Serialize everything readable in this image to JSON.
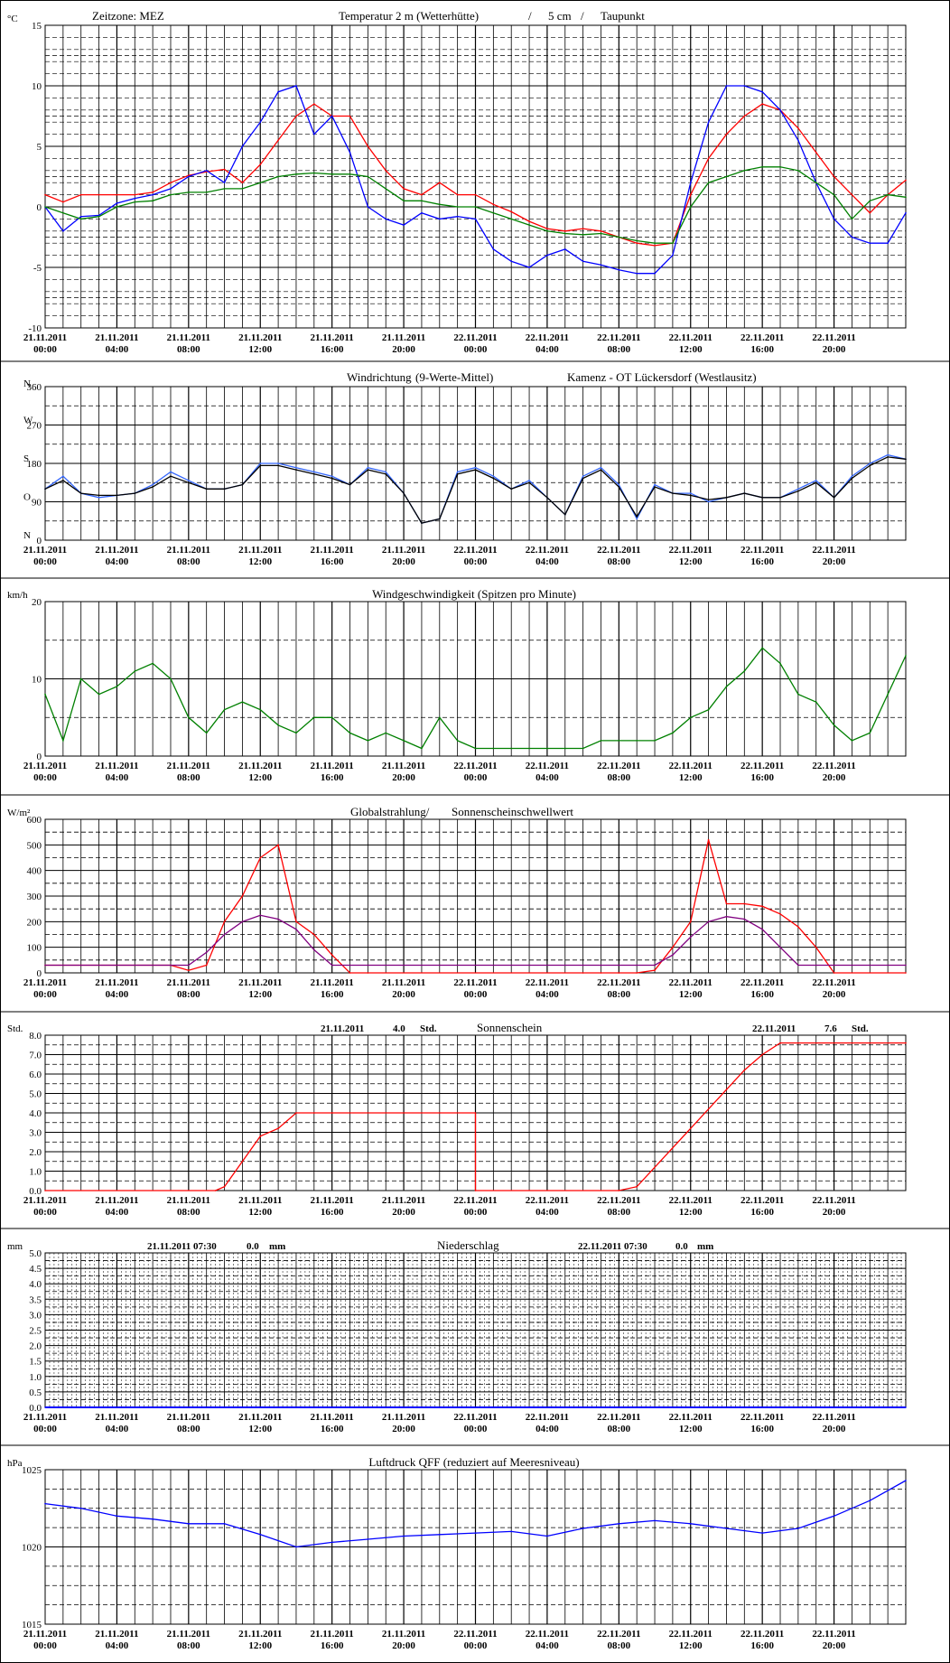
{
  "x_labels": [
    [
      "21.11.2011",
      "00:00"
    ],
    [
      "21.11.2011",
      "04:00"
    ],
    [
      "21.11.2011",
      "08:00"
    ],
    [
      "21.11.2011",
      "12:00"
    ],
    [
      "21.11.2011",
      "16:00"
    ],
    [
      "21.11.2011",
      "20:00"
    ],
    [
      "22.11.2011",
      "00:00"
    ],
    [
      "22.11.2011",
      "04:00"
    ],
    [
      "22.11.2011",
      "08:00"
    ],
    [
      "22.11.2011",
      "12:00"
    ],
    [
      "22.11.2011",
      "16:00"
    ],
    [
      "22.11.2011",
      "20:00"
    ]
  ],
  "colors": {
    "red": "#ff0000",
    "blue": "#0000ff",
    "green": "#008000",
    "purple": "#800080",
    "lightblue": "#3366ff",
    "black": "#000000",
    "wind_green": "#008000"
  },
  "chart_data": [
    {
      "id": "temperature",
      "type": "line",
      "unit": "°C",
      "title_parts": [
        {
          "text": "Zeitzone: MEZ",
          "color": "#000000"
        },
        {
          "text": "Temperatur 2 m (Wetterhütte)",
          "color": "#ff0000"
        },
        {
          "text": " / ",
          "color": "#000000"
        },
        {
          "text": "5 cm",
          "color": "#0000ff"
        },
        {
          "text": " / ",
          "color": "#000000"
        },
        {
          "text": "Taupunkt",
          "color": "#008000"
        }
      ],
      "ylim": [
        -10,
        15
      ],
      "yticks": [
        "15",
        "10",
        "5",
        "0",
        "-5",
        "-10"
      ],
      "series": [
        {
          "name": "Temperatur 2 m (Wetterhütte)",
          "color": "#ff0000",
          "x": [
            0,
            1,
            2,
            3,
            4,
            5,
            6,
            7,
            8,
            9,
            10,
            11,
            12,
            13,
            14,
            15,
            16,
            17,
            18,
            19,
            20,
            21,
            22,
            23,
            24,
            25,
            26,
            27,
            28,
            29,
            30,
            31,
            32,
            33,
            34,
            35,
            36,
            37,
            38,
            39,
            40,
            41,
            42,
            43,
            44,
            45,
            46,
            47,
            48
          ],
          "values": [
            1.0,
            0.4,
            1.0,
            1.0,
            1.0,
            1.0,
            1.2,
            2.0,
            2.6,
            2.9,
            3.1,
            2.0,
            3.5,
            5.5,
            7.5,
            8.5,
            7.5,
            7.5,
            5.0,
            3.0,
            1.5,
            1.0,
            2.0,
            1.0,
            1.0,
            0.2,
            -0.4,
            -1.2,
            -1.8,
            -2.0,
            -1.8,
            -2.0,
            -2.5,
            -3.0,
            -3.2,
            -3.0,
            1.0,
            4.0,
            6.0,
            7.5,
            8.5,
            8.0,
            6.5,
            4.5,
            2.5,
            1.0,
            -0.5,
            1.0,
            2.2
          ]
        },
        {
          "name": "5 cm",
          "color": "#0000ff",
          "x": [
            0,
            1,
            2,
            3,
            4,
            5,
            6,
            7,
            8,
            9,
            10,
            11,
            12,
            13,
            14,
            15,
            16,
            17,
            18,
            19,
            20,
            21,
            22,
            23,
            24,
            25,
            26,
            27,
            28,
            29,
            30,
            31,
            32,
            33,
            34,
            35,
            36,
            37,
            38,
            39,
            40,
            41,
            42,
            43,
            44,
            45,
            46,
            47,
            48
          ],
          "values": [
            0.0,
            -2.0,
            -0.8,
            -0.7,
            0.3,
            0.7,
            1.0,
            1.5,
            2.5,
            3.0,
            2.0,
            5.0,
            7.0,
            9.5,
            10.0,
            6.0,
            7.5,
            4.5,
            0.0,
            -1.0,
            -1.5,
            -0.5,
            -1.0,
            -0.8,
            -1.0,
            -3.5,
            -4.5,
            -5.0,
            -4.0,
            -3.5,
            -4.5,
            -4.8,
            -5.2,
            -5.5,
            -5.5,
            -4.0,
            2.0,
            7.0,
            10.0,
            10.0,
            9.5,
            8.0,
            5.5,
            2.0,
            -1.0,
            -2.5,
            -3.0,
            -3.0,
            -0.5
          ]
        },
        {
          "name": "Taupunkt",
          "color": "#008000",
          "x": [
            0,
            1,
            2,
            3,
            4,
            5,
            6,
            7,
            8,
            9,
            10,
            11,
            12,
            13,
            14,
            15,
            16,
            17,
            18,
            19,
            20,
            21,
            22,
            23,
            24,
            25,
            26,
            27,
            28,
            29,
            30,
            31,
            32,
            33,
            34,
            35,
            36,
            37,
            38,
            39,
            40,
            41,
            42,
            43,
            44,
            45,
            46,
            47,
            48
          ],
          "values": [
            0.0,
            -0.5,
            -1.0,
            -0.8,
            0.0,
            0.4,
            0.5,
            1.0,
            1.2,
            1.2,
            1.5,
            1.5,
            2.0,
            2.5,
            2.7,
            2.8,
            2.7,
            2.7,
            2.5,
            1.5,
            0.5,
            0.5,
            0.2,
            0.0,
            0.0,
            -0.5,
            -1.0,
            -1.5,
            -2.0,
            -2.2,
            -2.3,
            -2.2,
            -2.5,
            -2.8,
            -3.0,
            -3.0,
            0.0,
            2.0,
            2.5,
            3.0,
            3.3,
            3.3,
            3.0,
            2.0,
            1.0,
            -1.0,
            0.5,
            1.0,
            0.8
          ]
        }
      ]
    },
    {
      "id": "wind_direction",
      "type": "line",
      "title_parts": [
        {
          "text": "Windrichtung",
          "color": "#3366ff"
        },
        {
          "text": " (9-Werte-Mittel)",
          "color": "#000000"
        },
        {
          "text": "Kamenz - OT Lückersdorf (Westlausitz)",
          "color": "#000000"
        }
      ],
      "ylim": [
        0,
        360
      ],
      "yticks": [
        "360",
        "270",
        "180",
        "90",
        "0"
      ],
      "compass": [
        "N",
        "W",
        "S",
        "O",
        "N"
      ],
      "series": [
        {
          "name": "Windrichtung",
          "color": "#3366ff",
          "x": [
            0,
            1,
            2,
            3,
            4,
            5,
            6,
            7,
            8,
            9,
            10,
            11,
            12,
            13,
            14,
            15,
            16,
            17,
            18,
            19,
            20,
            21,
            22,
            23,
            24,
            25,
            26,
            27,
            28,
            29,
            30,
            31,
            32,
            33,
            34,
            35,
            36,
            37,
            38,
            39,
            40,
            41,
            42,
            43,
            44,
            45,
            46,
            47,
            48
          ],
          "values": [
            120,
            150,
            110,
            100,
            105,
            110,
            130,
            160,
            140,
            120,
            120,
            130,
            180,
            180,
            170,
            160,
            150,
            130,
            170,
            160,
            110,
            40,
            50,
            160,
            170,
            150,
            120,
            140,
            100,
            60,
            150,
            170,
            130,
            50,
            130,
            110,
            110,
            90,
            100,
            110,
            100,
            100,
            120,
            140,
            100,
            150,
            180,
            200,
            190
          ]
        },
        {
          "name": "9-Werte-Mittel",
          "color": "#000000",
          "x": [
            0,
            1,
            2,
            3,
            4,
            5,
            6,
            7,
            8,
            9,
            10,
            11,
            12,
            13,
            14,
            15,
            16,
            17,
            18,
            19,
            20,
            21,
            22,
            23,
            24,
            25,
            26,
            27,
            28,
            29,
            30,
            31,
            32,
            33,
            34,
            35,
            36,
            37,
            38,
            39,
            40,
            41,
            42,
            43,
            44,
            45,
            46,
            47,
            48
          ],
          "values": [
            120,
            140,
            110,
            105,
            105,
            110,
            125,
            150,
            135,
            120,
            120,
            130,
            175,
            175,
            165,
            155,
            145,
            130,
            165,
            155,
            110,
            40,
            50,
            155,
            165,
            145,
            120,
            135,
            100,
            60,
            145,
            165,
            125,
            55,
            125,
            110,
            105,
            95,
            100,
            110,
            100,
            100,
            115,
            135,
            100,
            145,
            175,
            195,
            190
          ]
        }
      ]
    },
    {
      "id": "wind_speed",
      "type": "line",
      "unit": "km/h",
      "title_parts": [
        {
          "text": "Windgeschwindigkeit (Spitzen pro Minute)",
          "color": "#000000"
        }
      ],
      "ylim": [
        0,
        20
      ],
      "yticks": [
        "20",
        "10",
        "0"
      ],
      "series": [
        {
          "name": "Windgeschwindigkeit",
          "color": "#008000",
          "x": [
            0,
            1,
            2,
            3,
            4,
            5,
            6,
            7,
            8,
            9,
            10,
            11,
            12,
            13,
            14,
            15,
            16,
            17,
            18,
            19,
            20,
            21,
            22,
            23,
            24,
            25,
            26,
            27,
            28,
            29,
            30,
            31,
            32,
            33,
            34,
            35,
            36,
            37,
            38,
            39,
            40,
            41,
            42,
            43,
            44,
            45,
            46,
            47,
            48
          ],
          "values": [
            8,
            2,
            10,
            8,
            9,
            11,
            12,
            10,
            5,
            3,
            6,
            7,
            6,
            4,
            3,
            5,
            5,
            3,
            2,
            3,
            2,
            1,
            5,
            2,
            1,
            1,
            1,
            1,
            1,
            1,
            1,
            2,
            2,
            2,
            2,
            3,
            5,
            6,
            9,
            11,
            14,
            12,
            8,
            7,
            4,
            2,
            3,
            8,
            13
          ]
        }
      ]
    },
    {
      "id": "global_radiation",
      "type": "line",
      "unit": "W/m²",
      "title_parts": [
        {
          "text": "Globalstrahlung/ ",
          "color": "#000000"
        },
        {
          "text": "Sonnenscheinschwellwert",
          "color": "#800080"
        }
      ],
      "ylim": [
        0,
        600
      ],
      "yticks": [
        "600",
        "500",
        "400",
        "300",
        "200",
        "100",
        "0"
      ],
      "series": [
        {
          "name": "Globalstrahlung",
          "color": "#ff0000",
          "x": [
            0,
            7,
            8,
            9,
            10,
            11,
            12,
            13,
            14,
            15,
            16,
            17,
            18,
            30,
            31,
            32,
            33,
            34,
            35,
            36,
            37,
            38,
            39,
            40,
            41,
            42,
            43,
            44,
            48
          ],
          "values": [
            30,
            30,
            10,
            30,
            200,
            300,
            450,
            500,
            200,
            150,
            70,
            0,
            0,
            0,
            0,
            0,
            0,
            10,
            100,
            200,
            520,
            270,
            270,
            260,
            230,
            180,
            100,
            0,
            0
          ]
        },
        {
          "name": "Sonnenscheinschwellwert",
          "color": "#800080",
          "x": [
            0,
            7,
            8,
            9,
            10,
            11,
            12,
            13,
            14,
            15,
            16,
            17,
            18,
            30,
            31,
            32,
            33,
            34,
            35,
            36,
            37,
            38,
            39,
            40,
            41,
            42,
            43,
            44,
            48
          ],
          "values": [
            30,
            30,
            30,
            80,
            150,
            200,
            225,
            210,
            170,
            90,
            30,
            30,
            30,
            30,
            30,
            30,
            30,
            30,
            70,
            140,
            200,
            220,
            210,
            170,
            100,
            30,
            30,
            30,
            30
          ]
        }
      ]
    },
    {
      "id": "sunshine",
      "type": "line",
      "unit": "Std.",
      "title_parts": [
        {
          "text": "21.11.2011",
          "color": "#000000"
        },
        {
          "text": "4.0",
          "color": "#000000"
        },
        {
          "text": "Std.",
          "color": "#000000"
        },
        {
          "text": "Sonnenschein",
          "color": "#000000"
        },
        {
          "text": "22.11.2011",
          "color": "#000000"
        },
        {
          "text": "7.6",
          "color": "#000000"
        },
        {
          "text": "Std.",
          "color": "#000000"
        }
      ],
      "ylim": [
        0,
        8
      ],
      "yticks": [
        "8.0",
        "7.0",
        "6.0",
        "5.0",
        "4.0",
        "3.0",
        "2.0",
        "1.0",
        "0.0"
      ],
      "series": [
        {
          "name": "Sonnenschein",
          "color": "#ff0000",
          "x": [
            0,
            9.5,
            10,
            11,
            12,
            13,
            14,
            15,
            16,
            24,
            24,
            32,
            33,
            38,
            39,
            40,
            41,
            42,
            48
          ],
          "values": [
            0,
            0,
            0.2,
            1.5,
            2.8,
            3.2,
            4.0,
            4.0,
            4.0,
            4.0,
            0,
            0,
            0.2,
            5.2,
            6.2,
            7.0,
            7.6,
            7.6,
            7.6
          ]
        }
      ]
    },
    {
      "id": "precipitation",
      "type": "line",
      "unit": "mm",
      "title_parts": [
        {
          "text": "21.11.2011 07:30",
          "color": "#000000"
        },
        {
          "text": "0.0",
          "color": "#000000"
        },
        {
          "text": "mm",
          "color": "#000000"
        },
        {
          "text": "Niederschlag",
          "color": "#000000"
        },
        {
          "text": "22.11.2011 07:30",
          "color": "#000000"
        },
        {
          "text": "0.0",
          "color": "#000000"
        },
        {
          "text": "mm",
          "color": "#000000"
        }
      ],
      "ylim": [
        0,
        5
      ],
      "yticks": [
        "5.0",
        "4.5",
        "4.0",
        "3.5",
        "3.0",
        "2.5",
        "2.0",
        "1.5",
        "1.0",
        "0.5",
        "0.0"
      ],
      "series": [
        {
          "name": "Niederschlag",
          "color": "#0000ff",
          "x": [
            0,
            48
          ],
          "values": [
            0,
            0
          ]
        }
      ]
    },
    {
      "id": "pressure",
      "type": "line",
      "unit": "hPa",
      "title_parts": [
        {
          "text": "Luftdruck QFF (reduziert auf Meeresniveau)",
          "color": "#000000"
        }
      ],
      "ylim": [
        1015,
        1025
      ],
      "yticks": [
        "1025",
        "1020",
        "1015"
      ],
      "series": [
        {
          "name": "Luftdruck QFF",
          "color": "#0000ff",
          "x": [
            0,
            2,
            4,
            6,
            8,
            10,
            12,
            14,
            16,
            18,
            20,
            22,
            24,
            26,
            28,
            30,
            32,
            34,
            36,
            38,
            40,
            42,
            44,
            46,
            48
          ],
          "values": [
            1022.8,
            1022.5,
            1022.0,
            1021.8,
            1021.5,
            1021.5,
            1020.8,
            1020.0,
            1020.3,
            1020.5,
            1020.7,
            1020.8,
            1020.9,
            1021.0,
            1020.7,
            1021.2,
            1021.5,
            1021.7,
            1021.5,
            1021.2,
            1020.9,
            1021.2,
            1022.0,
            1023.0,
            1024.3
          ]
        }
      ]
    }
  ]
}
